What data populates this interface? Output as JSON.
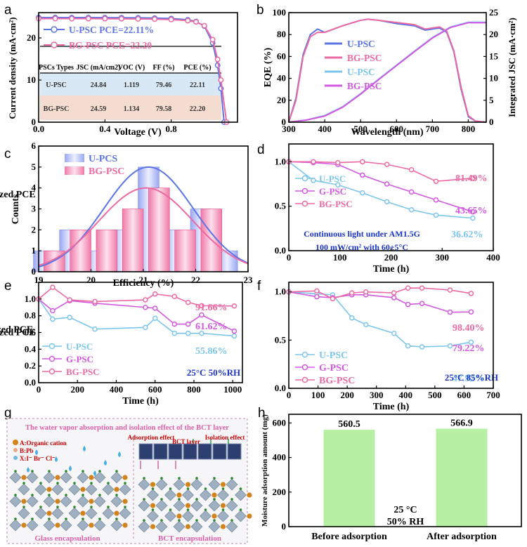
{
  "panel_labels": [
    "a",
    "b",
    "c",
    "d",
    "e",
    "f",
    "g",
    "h"
  ],
  "colors": {
    "blue": "#5b74e6",
    "pink": "#ec6aa4",
    "cyan": "#7cc6ec",
    "purple": "#d258e0",
    "green": "#b7f0a2",
    "salmon": "#f4dcd0",
    "lightblue": "#d8e8f4"
  },
  "chart_data": [
    {
      "id": "a",
      "type": "line",
      "xlabel": "Voltage (V)",
      "ylabel": "Current density (mA·cm²)",
      "xlim": [
        0,
        1.2
      ],
      "ylim": [
        0,
        26
      ],
      "xticks": [
        "0.0",
        "0.4",
        "0.8"
      ],
      "yticks": [
        "0",
        "10",
        "20"
      ],
      "series": [
        {
          "name": "U-PSC",
          "legend": "U-PSC  PCE=22.11%",
          "x": [
            0,
            0.1,
            0.2,
            0.3,
            0.4,
            0.5,
            0.6,
            0.7,
            0.8,
            0.9,
            0.95,
            1.0,
            1.05,
            1.08,
            1.1,
            1.119
          ],
          "values": [
            24.84,
            24.84,
            24.83,
            24.83,
            24.82,
            24.8,
            24.77,
            24.7,
            24.6,
            24.3,
            23.9,
            22.8,
            18.8,
            13.5,
            8.0,
            0
          ]
        },
        {
          "name": "BG-PSC",
          "legend": "BG-PSC  PCE=22.20",
          "x": [
            0,
            0.1,
            0.2,
            0.3,
            0.4,
            0.5,
            0.6,
            0.7,
            0.8,
            0.9,
            0.95,
            1.0,
            1.05,
            1.08,
            1.1,
            1.134
          ],
          "values": [
            24.59,
            24.59,
            24.58,
            24.58,
            24.57,
            24.55,
            24.52,
            24.46,
            24.36,
            24.1,
            23.8,
            22.9,
            19.6,
            14.9,
            10.0,
            0
          ]
        }
      ],
      "table": {
        "headers": [
          "PSCs Types",
          "JSC (mA/cm2)",
          "VOC (V)",
          "FF (%)",
          "PCE (%)"
        ],
        "rows": [
          [
            "U-PSC",
            "24.84",
            "1.119",
            "79.46",
            "22.11"
          ],
          [
            "BG-PSC",
            "24.59",
            "1.134",
            "79.58",
            "22.20"
          ]
        ]
      }
    },
    {
      "id": "b",
      "type": "line",
      "xlabel": "Wavelength (nm)",
      "ylabel": "EQE (%)",
      "y2label": "Integrated JSC (mA·cm²)",
      "xlim": [
        300,
        850
      ],
      "ylim": [
        0,
        100
      ],
      "y2lim": [
        0,
        25
      ],
      "xticks": [
        "300",
        "400",
        "500",
        "600",
        "700",
        "800"
      ],
      "yticks": [
        "0",
        "20",
        "40",
        "60",
        "80",
        "100"
      ],
      "y2ticks": [
        "0",
        "5",
        "10",
        "15",
        "20",
        "25"
      ],
      "series": [
        {
          "name": "U-PSC",
          "axis": "left",
          "x": [
            300,
            320,
            340,
            360,
            380,
            400,
            450,
            500,
            520,
            550,
            600,
            650,
            680,
            700,
            720,
            740,
            760,
            780,
            800,
            820,
            850
          ],
          "values": [
            0,
            22,
            62,
            80,
            85,
            82,
            88,
            93,
            94,
            93,
            90,
            88,
            84,
            85,
            86,
            82,
            64,
            30,
            5,
            1,
            0
          ]
        },
        {
          "name": "BG-PSC",
          "axis": "left",
          "x": [
            300,
            320,
            340,
            360,
            380,
            400,
            450,
            500,
            520,
            550,
            600,
            650,
            680,
            700,
            720,
            740,
            760,
            780,
            800,
            820,
            850
          ],
          "values": [
            0,
            20,
            60,
            78,
            82,
            82,
            88,
            93,
            94,
            93,
            91,
            89,
            85,
            86,
            87,
            83,
            65,
            32,
            6,
            1,
            0
          ]
        },
        {
          "name": "U-PSC",
          "axis": "right",
          "x": [
            300,
            350,
            400,
            450,
            500,
            550,
            600,
            650,
            700,
            750,
            800,
            850
          ],
          "values": [
            0,
            0.5,
            1.5,
            3.5,
            6.5,
            9.8,
            13,
            16.2,
            19.3,
            21.7,
            22.8,
            22.8
          ]
        },
        {
          "name": "BG-PSC",
          "axis": "right",
          "x": [
            300,
            350,
            400,
            450,
            500,
            550,
            600,
            650,
            700,
            750,
            800,
            850
          ],
          "values": [
            0,
            0.5,
            1.4,
            3.4,
            6.4,
            9.7,
            12.9,
            16.1,
            19.2,
            21.6,
            22.7,
            22.7
          ]
        }
      ],
      "legend": [
        "U-PSC",
        "BG-PSC",
        "U-PSC",
        "BG-PSC"
      ]
    },
    {
      "id": "c",
      "type": "bar",
      "xlabel": "Efficiency (%)",
      "ylabel": "Counts",
      "xlim": [
        19,
        23
      ],
      "ylim": [
        0,
        6
      ],
      "xticks": [
        "19",
        "20",
        "21",
        "22",
        "23"
      ],
      "yticks": [
        "0",
        "1",
        "2",
        "3",
        "4",
        "5",
        "6"
      ],
      "series": [
        {
          "name": "U-PCS",
          "x": [
            19.1,
            19.6,
            20.1,
            20.6,
            21.1,
            21.6,
            22.1,
            22.6
          ],
          "values": [
            1,
            2,
            1,
            2,
            5,
            2,
            3,
            1
          ]
        },
        {
          "name": "BG-PSC",
          "x": [
            19.3,
            19.8,
            20.3,
            20.8,
            21.3,
            21.8,
            22.3,
            22.8
          ],
          "values": [
            1,
            2,
            2,
            3,
            4,
            2,
            3,
            0
          ]
        }
      ],
      "fit": [
        {
          "name": "U-PCS",
          "mean": 21.1,
          "sd": 0.85,
          "peak": 5
        },
        {
          "name": "BG-PSC",
          "mean": 21.05,
          "sd": 0.9,
          "peak": 4
        }
      ]
    },
    {
      "id": "d",
      "type": "line",
      "xlabel": "Time (h)",
      "ylabel": "Normalized PCE",
      "xlim": [
        0,
        400
      ],
      "ylim": [
        0,
        1.2
      ],
      "xticks": [
        "0",
        "100",
        "200",
        "300",
        "400"
      ],
      "yticks": [
        "0.0",
        "0.5",
        "1.0"
      ],
      "series": [
        {
          "name": "U-PSC",
          "x": [
            0,
            48,
            96,
            144,
            192,
            240,
            288,
            360
          ],
          "values": [
            1.0,
            0.79,
            0.74,
            0.65,
            0.55,
            0.46,
            0.4,
            0.3662
          ]
        },
        {
          "name": "G-PSC",
          "x": [
            0,
            48,
            96,
            144,
            192,
            240,
            288,
            360
          ],
          "values": [
            1.0,
            0.99,
            0.97,
            0.85,
            0.75,
            0.66,
            0.57,
            0.4365
          ]
        },
        {
          "name": "BG-PSC",
          "x": [
            0,
            48,
            96,
            144,
            192,
            240,
            288,
            360
          ],
          "values": [
            1.0,
            1.0,
            0.99,
            1.0,
            0.97,
            0.91,
            0.78,
            0.8149
          ]
        }
      ],
      "annotations": [
        "81.49%",
        "43.65%",
        "36.62%"
      ],
      "note": [
        "Continuous light under AM1.5G",
        "100 mW/cm² with 60±5°C"
      ]
    },
    {
      "id": "e",
      "type": "line",
      "xlabel": "Time (h)",
      "ylabel": "Normlized PCE",
      "xlim": [
        0,
        1050
      ],
      "ylim": [
        0,
        1.2
      ],
      "xticks": [
        "0",
        "200",
        "400",
        "600",
        "800",
        "1000"
      ],
      "yticks": [
        "0.0",
        "0.2",
        "0.4",
        "0.6",
        "0.8",
        "1.0"
      ],
      "series": [
        {
          "name": "U-PSC",
          "x": [
            0,
            72,
            160,
            290,
            550,
            600,
            700,
            770,
            840,
            1008
          ],
          "values": [
            1.0,
            0.76,
            0.78,
            0.64,
            0.66,
            0.77,
            0.59,
            0.59,
            0.59,
            0.5586
          ]
        },
        {
          "name": "G-PSC",
          "x": [
            0,
            72,
            160,
            290,
            550,
            600,
            700,
            770,
            840,
            1008
          ],
          "values": [
            1.0,
            0.86,
            0.98,
            0.95,
            0.9,
            0.89,
            0.7,
            0.7,
            0.81,
            0.6162
          ]
        },
        {
          "name": "BG-PSC",
          "x": [
            0,
            72,
            160,
            290,
            550,
            600,
            700,
            770,
            840,
            1008
          ],
          "values": [
            1.0,
            1.14,
            0.99,
            0.97,
            0.99,
            1.06,
            1.03,
            0.96,
            0.92,
            0.9166
          ]
        }
      ],
      "annotations": [
        "91.66%",
        "61.62%",
        "55.86%"
      ],
      "note": [
        "25°C 50%RH"
      ]
    },
    {
      "id": "f",
      "type": "line",
      "xlabel": "Time (h)",
      "ylabel": "Normalized PCE",
      "xlim": [
        0,
        700
      ],
      "ylim": [
        0,
        1.1
      ],
      "xticks": [
        "0",
        "100",
        "200",
        "300",
        "400",
        "500",
        "600",
        "700"
      ],
      "yticks": [
        "0.0",
        "0.5",
        "1.0"
      ],
      "series": [
        {
          "name": "U-PSC",
          "x": [
            0,
            96,
            150,
            216,
            264,
            360,
            408,
            456,
            552,
            624
          ],
          "values": [
            1.0,
            0.98,
            0.97,
            0.73,
            0.66,
            0.57,
            0.44,
            0.43,
            0.44,
            0.4792
          ]
        },
        {
          "name": "G-PSC",
          "x": [
            0,
            96,
            150,
            216,
            264,
            360,
            408,
            456,
            552,
            624
          ],
          "values": [
            1.0,
            0.95,
            0.94,
            0.97,
            0.97,
            0.94,
            0.87,
            0.88,
            0.79,
            0.7922
          ]
        },
        {
          "name": "BG-PSC",
          "x": [
            0,
            96,
            150,
            216,
            264,
            360,
            408,
            456,
            552,
            624
          ],
          "values": [
            1.0,
            1.01,
            0.93,
            0.99,
            1.0,
            0.99,
            1.04,
            1.04,
            1.02,
            0.984
          ]
        }
      ],
      "annotations": [
        "98.40%",
        "79.22%",
        "47.92%"
      ],
      "note": [
        "25°C  85%RH"
      ]
    },
    {
      "id": "h",
      "type": "bar",
      "xlabel": "",
      "ylabel": "Moisture adsorption amount (mg)",
      "ylim": [
        0,
        650
      ],
      "yticks": [
        "0",
        "200",
        "400",
        "600"
      ],
      "categories": [
        "Before adsorption",
        "After adsorption"
      ],
      "values": [
        560.5,
        566.9
      ],
      "data_labels": [
        "560.5",
        "566.9"
      ],
      "note": [
        "25 °C",
        "50% RH"
      ]
    }
  ],
  "schematic": {
    "title": "The water vapor absorption and isolation effect of the BCT layer",
    "legend": [
      "A:Organic cation",
      "B:Pb",
      "X:I⁻ Br⁻ Cl⁻"
    ],
    "top_labels": [
      "Adsorption effect",
      "BCT layer",
      "Isolation effect"
    ],
    "captions": [
      "Glass encapsulation",
      "BCT encapsulation"
    ]
  }
}
